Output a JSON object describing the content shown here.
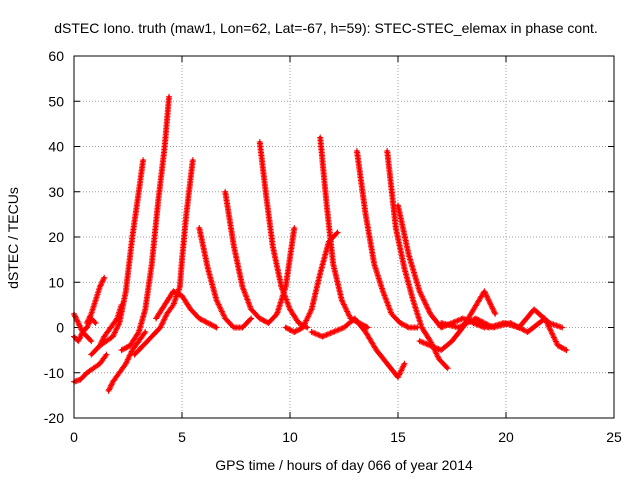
{
  "chart_data": {
    "type": "scatter",
    "title": "dSTEC Iono. truth (maw1, Lon=62, Lat=-67, h=59): STEC-STEC_elemax in phase cont.",
    "xlabel": "GPS time / hours of day 066 of year 2014",
    "ylabel": "dSTEC  / TECUs",
    "xlim": [
      0,
      25
    ],
    "ylim": [
      -20,
      60
    ],
    "xticks": [
      0,
      5,
      10,
      15,
      20,
      25
    ],
    "xtick_labels": [
      "0",
      "5",
      "10",
      "15",
      "20",
      "25"
    ],
    "yticks": [
      -20,
      -10,
      0,
      10,
      20,
      30,
      40,
      50,
      60
    ],
    "ytick_labels": [
      "-20",
      "-10",
      "0",
      "10",
      "20",
      "30",
      "40",
      "50",
      "60"
    ],
    "grid": true,
    "marker": "+",
    "color": "#ff0000",
    "series": [
      {
        "x": [
          0.0,
          0.2,
          0.4,
          0.6,
          0.8,
          1.0
        ],
        "y": [
          3,
          1,
          -1,
          0,
          2,
          1
        ]
      },
      {
        "x": [
          0.0,
          0.2,
          0.4,
          0.6,
          0.8
        ],
        "y": [
          -2,
          -3,
          -1,
          -2,
          -3
        ]
      },
      {
        "x": [
          0.0,
          0.3,
          0.6,
          0.9,
          1.2,
          1.5
        ],
        "y": [
          -12,
          -11.5,
          -10,
          -9,
          -8,
          -6
        ]
      },
      {
        "x": [
          0.6,
          0.8,
          1.0,
          1.2,
          1.4
        ],
        "y": [
          1,
          3,
          6,
          9,
          11
        ]
      },
      {
        "x": [
          0.8,
          1.0,
          1.2,
          1.4,
          1.7,
          2.0,
          2.2
        ],
        "y": [
          -6,
          -5,
          -4,
          -2,
          0,
          2,
          5
        ]
      },
      {
        "x": [
          1.2,
          1.5,
          1.8,
          2.1,
          2.4,
          2.7,
          3.0,
          3.2
        ],
        "y": [
          -4,
          -3,
          -2,
          1,
          8,
          20,
          30,
          37
        ]
      },
      {
        "x": [
          1.6,
          1.8,
          2.1,
          2.4,
          2.7,
          3.0,
          3.3
        ],
        "y": [
          -14,
          -12,
          -10,
          -8,
          -5,
          -3,
          -1
        ]
      },
      {
        "x": [
          2.2,
          2.6,
          3.0,
          3.3,
          3.6,
          3.9,
          4.2,
          4.4
        ],
        "y": [
          -5,
          -4,
          -1,
          4,
          14,
          28,
          40,
          51
        ]
      },
      {
        "x": [
          2.8,
          3.2,
          3.6,
          4.0,
          4.3,
          4.6,
          4.9,
          5.0,
          5.2,
          5.5
        ],
        "y": [
          -6,
          -4,
          -2,
          0,
          3,
          5,
          9,
          15,
          25,
          37
        ]
      },
      {
        "x": [
          3.8,
          4.2,
          4.6,
          5.0,
          5.4,
          5.8,
          6.2,
          6.6
        ],
        "y": [
          2,
          5,
          8,
          7,
          4,
          2,
          1,
          0
        ]
      },
      {
        "x": [
          5.8,
          6.2,
          6.6,
          7.0,
          7.4,
          7.8,
          8.2
        ],
        "y": [
          22,
          13,
          6,
          2,
          0,
          0,
          2
        ]
      },
      {
        "x": [
          7.0,
          7.4,
          7.8,
          8.2,
          8.6,
          9.0,
          9.4,
          9.8,
          10.2
        ],
        "y": [
          30,
          18,
          9,
          4,
          2,
          1,
          3,
          9,
          22
        ]
      },
      {
        "x": [
          8.6,
          8.9,
          9.2,
          9.6,
          10.0,
          10.4,
          10.8
        ],
        "y": [
          41,
          29,
          18,
          9,
          4,
          1,
          0
        ]
      },
      {
        "x": [
          9.8,
          10.2,
          10.6,
          11.0,
          11.4,
          11.8,
          12.2
        ],
        "y": [
          0,
          -1,
          0,
          4,
          12,
          19,
          21
        ]
      },
      {
        "x": [
          11.4,
          11.7,
          12.0,
          12.4,
          12.8,
          13.2,
          13.6
        ],
        "y": [
          42,
          27,
          14,
          6,
          2,
          1,
          0
        ]
      },
      {
        "x": [
          11.0,
          11.5,
          12.0,
          12.5,
          13.0,
          13.5,
          14.0,
          14.5,
          15.0,
          15.3
        ],
        "y": [
          -1,
          -2,
          -1,
          0,
          2,
          -1,
          -5,
          -8,
          -11,
          -8
        ]
      },
      {
        "x": [
          13.1,
          13.5,
          13.9,
          14.3,
          14.7,
          15.1,
          15.5,
          15.9
        ],
        "y": [
          39,
          25,
          14,
          8,
          3,
          1,
          0,
          0
        ]
      },
      {
        "x": [
          14.5,
          14.9,
          15.3,
          15.7,
          16.1,
          16.5,
          16.9,
          17.3
        ],
        "y": [
          39,
          22,
          13,
          6,
          0,
          -3,
          -7,
          -9
        ]
      },
      {
        "x": [
          15.0,
          15.5,
          16.0,
          16.5,
          17.0,
          17.5,
          18.0,
          18.5,
          19.0
        ],
        "y": [
          27,
          16,
          8,
          3,
          0,
          1,
          2,
          1,
          0
        ]
      },
      {
        "x": [
          16.0,
          16.5,
          17.0,
          17.5,
          18.0,
          18.5,
          19.0,
          19.5
        ],
        "y": [
          -3,
          -4,
          -5,
          -3,
          0,
          4,
          8,
          3
        ]
      },
      {
        "x": [
          17.0,
          17.8,
          18.6,
          19.4,
          20.2,
          21.0,
          21.8,
          22.4,
          22.8
        ],
        "y": [
          1,
          0,
          2,
          0,
          1,
          -1,
          2,
          -4,
          -5
        ]
      },
      {
        "x": [
          18.5,
          19.2,
          19.9,
          20.6,
          21.3,
          22.0,
          22.6
        ],
        "y": [
          1,
          0,
          1,
          0,
          4,
          1,
          0
        ]
      }
    ]
  }
}
